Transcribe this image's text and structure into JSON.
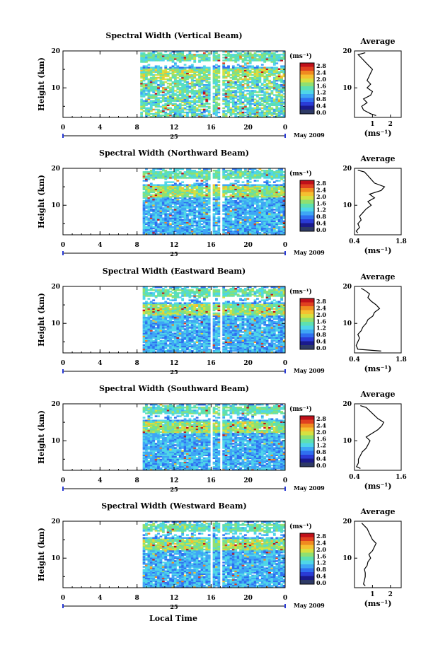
{
  "colors": {
    "colormap": [
      "#1a1a8c",
      "#2a3bd6",
      "#2f6ff0",
      "#3ea6f5",
      "#4fd6e8",
      "#5de0b0",
      "#8fe070",
      "#d6e040",
      "#f5c030",
      "#f08a20",
      "#e04020",
      "#c0101a"
    ],
    "floor_color": "#2e3a66"
  },
  "colorbar": {
    "unit": "(ms⁻¹)",
    "ticks": [
      "2.8",
      "2.4",
      "2.0",
      "1.6",
      "1.2",
      "0.8",
      "0.4",
      "0.0"
    ]
  },
  "x_axis": {
    "ticks": [
      "0",
      "4",
      "8",
      "12",
      "16",
      "20",
      "0"
    ],
    "day": "25",
    "date": "May 2009",
    "xlabel": "Local Time"
  },
  "avg_title": "Average",
  "ylabel": "Height (km)",
  "avg_xlabel": "(ms⁻¹)",
  "chart_data": [
    {
      "type": "heatmap",
      "title": "Spectral Width (Vertical Beam)",
      "x_range_hours": [
        0,
        24
      ],
      "y_range_km": [
        2,
        20
      ],
      "y_ticks": [
        "20",
        "10"
      ],
      "data_gaps_hours": [
        [
          0,
          8.3
        ],
        [
          16.0,
          16.3
        ],
        [
          16.9,
          17.3
        ]
      ],
      "average_profile": {
        "xlim": [
          0,
          2.6
        ],
        "x_ticks": [
          "1",
          "2"
        ],
        "heights_km": [
          2.5,
          3,
          4,
          5,
          6,
          7,
          8,
          9,
          10,
          11,
          12,
          13,
          14,
          15,
          16,
          17,
          18,
          19,
          19.5
        ],
        "values": [
          1.2,
          0.9,
          0.5,
          0.4,
          0.7,
          0.5,
          0.9,
          1.0,
          0.7,
          0.9,
          0.7,
          0.8,
          0.9,
          1.0,
          0.8,
          0.6,
          0.4,
          0.2,
          0.6
        ]
      }
    },
    {
      "type": "heatmap",
      "title": "Spectral Width (Northward Beam)",
      "x_range_hours": [
        0,
        24
      ],
      "y_range_km": [
        2,
        20
      ],
      "y_ticks": [
        "20",
        "10"
      ],
      "data_gaps_hours": [
        [
          0,
          8.5
        ],
        [
          16.0,
          16.3
        ],
        [
          17.0,
          17.3
        ]
      ],
      "average_profile": {
        "xlim": [
          0.4,
          1.8
        ],
        "x_ticks": [
          "0.4",
          "1.8"
        ],
        "heights_km": [
          2.5,
          3,
          4,
          5,
          6,
          7,
          8,
          9,
          10,
          11,
          12,
          13,
          14,
          15,
          16,
          17,
          18,
          19,
          19.5
        ],
        "values": [
          0.5,
          0.45,
          0.55,
          0.5,
          0.6,
          0.55,
          0.65,
          0.75,
          0.9,
          0.8,
          1.0,
          0.85,
          1.2,
          1.3,
          1.0,
          0.9,
          0.8,
          0.7,
          0.5
        ]
      }
    },
    {
      "type": "heatmap",
      "title": "Spectral Width (Eastward Beam)",
      "x_range_hours": [
        0,
        24
      ],
      "y_range_km": [
        2,
        20
      ],
      "y_ticks": [
        "20",
        "10"
      ],
      "data_gaps_hours": [
        [
          0,
          8.6
        ],
        [
          16.0,
          16.3
        ],
        [
          17.0,
          17.3
        ]
      ],
      "average_profile": {
        "xlim": [
          0.4,
          1.8
        ],
        "x_ticks": [
          "0.4",
          "1.8"
        ],
        "heights_km": [
          2.5,
          3,
          4,
          5,
          6,
          7,
          8,
          9,
          10,
          11,
          12,
          13,
          14,
          15,
          16,
          17,
          18,
          19,
          19.5
        ],
        "values": [
          1.2,
          0.5,
          0.45,
          0.5,
          0.55,
          0.5,
          0.6,
          0.65,
          0.75,
          0.8,
          0.95,
          1.0,
          1.15,
          1.05,
          0.9,
          0.8,
          0.85,
          0.7,
          0.6
        ]
      }
    },
    {
      "type": "heatmap",
      "title": "Spectral Width (Southward Beam)",
      "x_range_hours": [
        0,
        24
      ],
      "y_range_km": [
        2,
        20
      ],
      "y_ticks": [
        "20",
        "10"
      ],
      "data_gaps_hours": [
        [
          0,
          8.6
        ],
        [
          16.0,
          16.3
        ],
        [
          17.0,
          17.3
        ]
      ],
      "average_profile": {
        "xlim": [
          0.4,
          1.6
        ],
        "x_ticks": [
          "0.4",
          "1.6"
        ],
        "heights_km": [
          2.5,
          3,
          4,
          5,
          6,
          7,
          8,
          9,
          10,
          11,
          12,
          13,
          14,
          15,
          16,
          17,
          18,
          19,
          19.5
        ],
        "values": [
          0.55,
          0.45,
          0.5,
          0.5,
          0.55,
          0.6,
          0.7,
          0.75,
          0.8,
          0.7,
          0.85,
          1.0,
          1.1,
          1.15,
          1.0,
          0.9,
          0.8,
          0.7,
          0.55
        ]
      }
    },
    {
      "type": "heatmap",
      "title": "Spectral Width (Westward Beam)",
      "x_range_hours": [
        0,
        24
      ],
      "y_range_km": [
        2,
        20
      ],
      "y_ticks": [
        "20",
        "10"
      ],
      "data_gaps_hours": [
        [
          0,
          8.6
        ],
        [
          16.0,
          16.3
        ],
        [
          17.0,
          17.3
        ]
      ],
      "average_profile": {
        "xlim": [
          0,
          2.6
        ],
        "x_ticks": [
          "1",
          "2"
        ],
        "heights_km": [
          2.5,
          3,
          4,
          5,
          6,
          7,
          8,
          9,
          10,
          11,
          12,
          13,
          14,
          15,
          16,
          17,
          18,
          19,
          19.5
        ],
        "values": [
          0.6,
          0.5,
          0.55,
          0.6,
          0.6,
          0.55,
          0.7,
          0.75,
          0.9,
          0.8,
          1.0,
          1.1,
          1.2,
          1.0,
          0.9,
          0.8,
          0.7,
          0.5,
          0.4
        ]
      }
    }
  ]
}
